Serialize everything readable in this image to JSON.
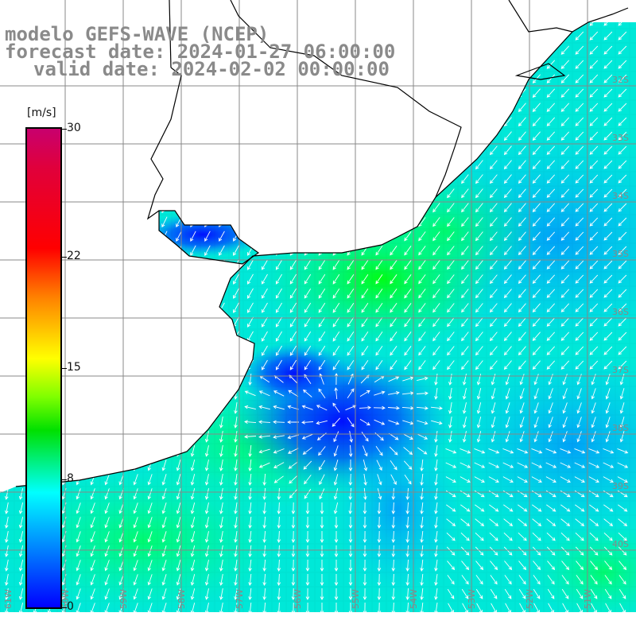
{
  "title": {
    "line1": "modelo GEFS-WAVE (NCEP)",
    "line2": "forecast date: 2024-01-27 06:00:00",
    "line3": "valid date: 2024-02-02 00:00:00"
  },
  "colorbar": {
    "unit": "[m/s]",
    "ticks": [
      "30",
      "22",
      "15",
      "8",
      "0"
    ],
    "tick_values": [
      30,
      22,
      15,
      8,
      0
    ],
    "range": [
      0,
      30
    ]
  },
  "map": {
    "field": "wind speed with direction arrows",
    "lon_labels": [
      "61W",
      "60W",
      "59W",
      "58W",
      "57W",
      "56W",
      "55W",
      "54W",
      "53W",
      "52W",
      "51W"
    ],
    "lat_labels": [
      "32S",
      "33S",
      "34S",
      "35S",
      "36S",
      "37S",
      "38S",
      "39S",
      "40S"
    ],
    "colors": {
      "land": "#ffffff",
      "coast": "#000000",
      "grid": "#888888",
      "arrow": "#ffffff"
    }
  }
}
